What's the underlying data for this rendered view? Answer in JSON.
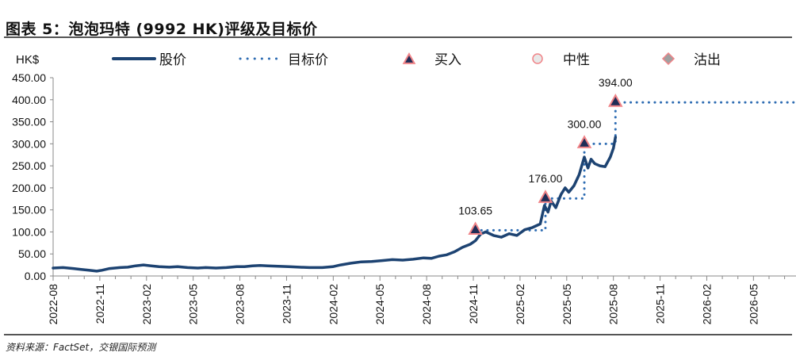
{
  "title": "图表 5：泡泡玛特 (9992 HK)评级及目标价",
  "source": "资料来源：FactSet，交银国际预测",
  "chart_data": {
    "type": "line",
    "title": "图表 5：泡泡玛特 (9992 HK)评级及目标价",
    "ylabel": "HK$",
    "xlabel": "",
    "ylim": [
      0,
      450
    ],
    "yticks": [
      "0.00",
      "50.00",
      "100.00",
      "150.00",
      "200.00",
      "250.00",
      "300.00",
      "350.00",
      "400.00",
      "450.00"
    ],
    "xticks": [
      "2022-08",
      "2022-11",
      "2023-02",
      "2023-05",
      "2023-08",
      "2023-11",
      "2024-02",
      "2024-05",
      "2024-08",
      "2024-11",
      "2025-02",
      "2025-05",
      "2025-08",
      "2025-11",
      "2026-02",
      "2026-05"
    ],
    "xrange": [
      "2022-08-01",
      "2026-08-10"
    ],
    "legend": {
      "placement": "top",
      "entries": [
        {
          "label": "股价",
          "kind": "line"
        },
        {
          "label": "目标价",
          "kind": "dotted"
        },
        {
          "label": "买入",
          "kind": "triangle"
        },
        {
          "label": "中性",
          "kind": "circle"
        },
        {
          "label": "沽出",
          "kind": "diamond"
        }
      ]
    },
    "colors": {
      "price": "#1d4372",
      "target": "#2f6db3",
      "marker_fill": "#1f2d57",
      "marker_edge": "#f08488",
      "neutral_fill": "#e8e8e8",
      "sell_fill": "#a0a0a0"
    },
    "series": [
      {
        "name": "股价",
        "points": [
          [
            "2022-08-01",
            18
          ],
          [
            "2022-08-20",
            19
          ],
          [
            "2022-09-10",
            17
          ],
          [
            "2022-09-25",
            15
          ],
          [
            "2022-10-10",
            13
          ],
          [
            "2022-10-25",
            11
          ],
          [
            "2022-11-05",
            13
          ],
          [
            "2022-11-20",
            17
          ],
          [
            "2022-12-10",
            19
          ],
          [
            "2022-12-25",
            20
          ],
          [
            "2023-01-10",
            23
          ],
          [
            "2023-01-25",
            25
          ],
          [
            "2023-02-10",
            23
          ],
          [
            "2023-02-25",
            21
          ],
          [
            "2023-03-15",
            20
          ],
          [
            "2023-04-01",
            21
          ],
          [
            "2023-04-20",
            19
          ],
          [
            "2023-05-10",
            18
          ],
          [
            "2023-05-25",
            19
          ],
          [
            "2023-06-15",
            18
          ],
          [
            "2023-07-05",
            19
          ],
          [
            "2023-07-25",
            21
          ],
          [
            "2023-08-10",
            21
          ],
          [
            "2023-08-25",
            23
          ],
          [
            "2023-09-10",
            24
          ],
          [
            "2023-09-25",
            23
          ],
          [
            "2023-10-15",
            22
          ],
          [
            "2023-11-05",
            21
          ],
          [
            "2023-11-25",
            20
          ],
          [
            "2023-12-15",
            19
          ],
          [
            "2024-01-10",
            19
          ],
          [
            "2024-01-30",
            21
          ],
          [
            "2024-02-15",
            25
          ],
          [
            "2024-03-05",
            29
          ],
          [
            "2024-03-25",
            32
          ],
          [
            "2024-04-15",
            33
          ],
          [
            "2024-05-05",
            35
          ],
          [
            "2024-05-25",
            37
          ],
          [
            "2024-06-15",
            36
          ],
          [
            "2024-07-05",
            38
          ],
          [
            "2024-07-25",
            41
          ],
          [
            "2024-08-10",
            40
          ],
          [
            "2024-08-25",
            45
          ],
          [
            "2024-09-10",
            48
          ],
          [
            "2024-09-25",
            55
          ],
          [
            "2024-10-10",
            65
          ],
          [
            "2024-10-25",
            72
          ],
          [
            "2024-11-05",
            80
          ],
          [
            "2024-11-15",
            95
          ],
          [
            "2024-11-25",
            100
          ],
          [
            "2024-12-10",
            92
          ],
          [
            "2024-12-25",
            88
          ],
          [
            "2025-01-10",
            96
          ],
          [
            "2025-01-25",
            92
          ],
          [
            "2025-02-10",
            105
          ],
          [
            "2025-02-25",
            110
          ],
          [
            "2025-03-10",
            118
          ],
          [
            "2025-03-18",
            160
          ],
          [
            "2025-03-25",
            145
          ],
          [
            "2025-04-01",
            170
          ],
          [
            "2025-04-10",
            155
          ],
          [
            "2025-04-20",
            185
          ],
          [
            "2025-04-28",
            200
          ],
          [
            "2025-05-05",
            190
          ],
          [
            "2025-05-15",
            205
          ],
          [
            "2025-05-25",
            230
          ],
          [
            "2025-06-05",
            270
          ],
          [
            "2025-06-12",
            245
          ],
          [
            "2025-06-18",
            265
          ],
          [
            "2025-06-25",
            255
          ],
          [
            "2025-07-05",
            250
          ],
          [
            "2025-07-15",
            248
          ],
          [
            "2025-07-25",
            270
          ],
          [
            "2025-08-01",
            290
          ],
          [
            "2025-08-05",
            315
          ]
        ]
      },
      {
        "name": "目标价",
        "steps": [
          {
            "from": "2024-11-05",
            "to": "2025-03-20",
            "value": 103.65
          },
          {
            "from": "2025-03-20",
            "to": "2025-06-05",
            "value": 176.0
          },
          {
            "from": "2025-06-05",
            "to": "2025-08-05",
            "value": 300.0
          },
          {
            "from": "2025-08-05",
            "to": "2026-08-10",
            "value": 394.0
          }
        ]
      }
    ],
    "ratings": [
      {
        "date": "2024-11-05",
        "rating": "买入",
        "target": 103.65,
        "label": "103.65"
      },
      {
        "date": "2025-03-20",
        "rating": "买入",
        "target": 176.0,
        "label": "176.00"
      },
      {
        "date": "2025-06-05",
        "rating": "买入",
        "target": 300.0,
        "label": "300.00"
      },
      {
        "date": "2025-08-05",
        "rating": "买入",
        "target": 394.0,
        "label": "394.00"
      }
    ]
  }
}
